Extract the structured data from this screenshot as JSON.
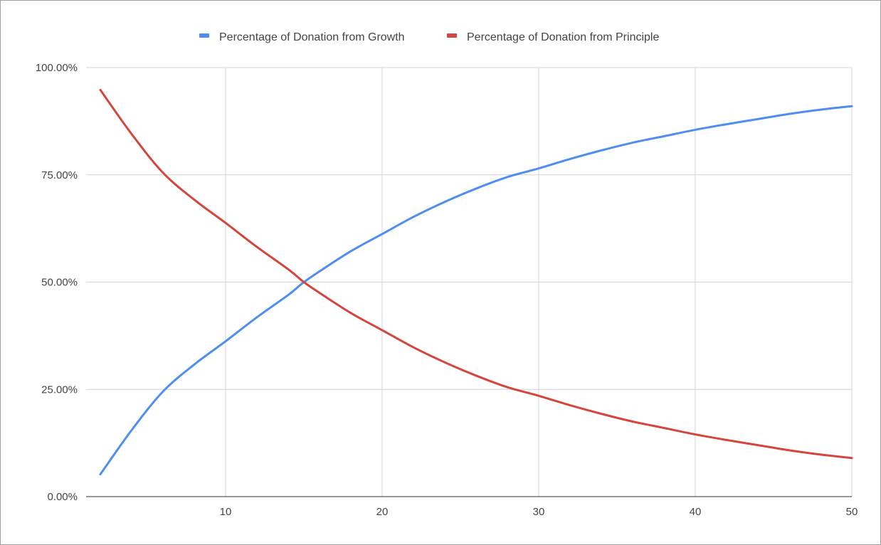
{
  "chart_data": {
    "type": "line",
    "title": "",
    "xlabel": "",
    "ylabel": "",
    "xlim": [
      2,
      50
    ],
    "ylim": [
      0,
      100
    ],
    "x_ticks": [
      10,
      20,
      30,
      40,
      50
    ],
    "y_ticks": [
      {
        "value": 0,
        "label": "0.00%"
      },
      {
        "value": 25,
        "label": "25.00%"
      },
      {
        "value": 50,
        "label": "50.00%"
      },
      {
        "value": 75,
        "label": "75.00%"
      },
      {
        "value": 100,
        "label": "100.00%"
      }
    ],
    "grid": true,
    "legend_position": "top",
    "x": [
      2,
      4,
      6,
      8,
      10,
      12,
      14,
      15,
      16,
      18,
      20,
      22,
      24,
      26,
      28,
      30,
      32,
      34,
      36,
      38,
      40,
      42,
      44,
      46,
      48,
      50
    ],
    "series": [
      {
        "name": "Percentage of Donation from Growth",
        "color": "#4f8ef0",
        "values": [
          5.2,
          15.5,
          24.5,
          30.8,
          36.2,
          41.8,
          47.0,
          50.0,
          52.5,
          57.2,
          61.2,
          65.2,
          68.7,
          71.8,
          74.5,
          76.5,
          78.7,
          80.7,
          82.5,
          84.0,
          85.5,
          86.8,
          88.0,
          89.2,
          90.2,
          91.0
        ]
      },
      {
        "name": "Percentage of Donation from Principle",
        "color": "#d6453d",
        "values": [
          94.8,
          84.5,
          75.5,
          69.2,
          63.8,
          58.2,
          53.0,
          50.0,
          47.5,
          42.8,
          38.8,
          34.8,
          31.3,
          28.2,
          25.5,
          23.5,
          21.3,
          19.3,
          17.5,
          16.0,
          14.5,
          13.2,
          12.0,
          10.8,
          9.8,
          9.0
        ]
      }
    ]
  }
}
